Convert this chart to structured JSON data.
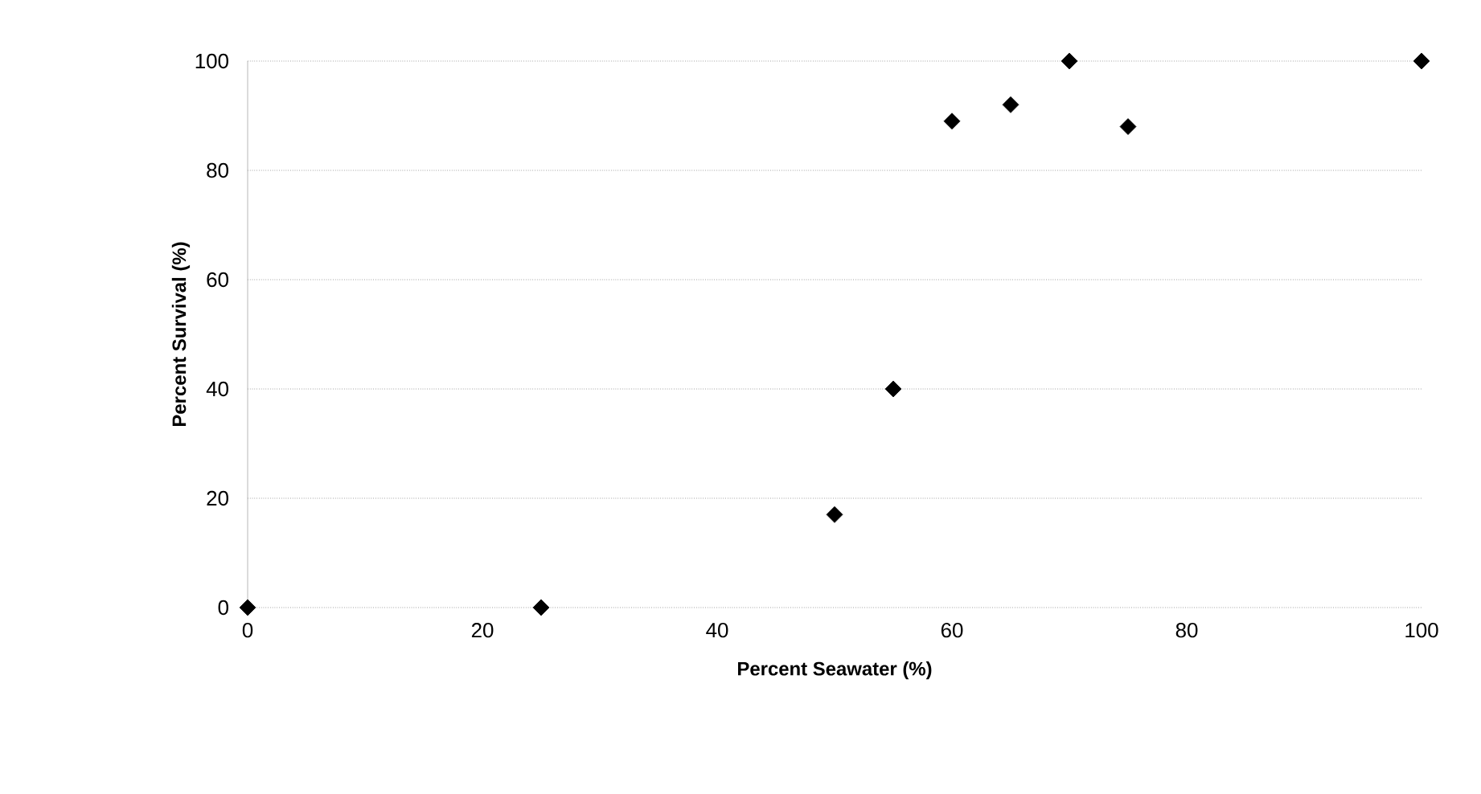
{
  "chart_data": {
    "type": "scatter",
    "xlabel": "Percent Seawater (%)",
    "ylabel": "Percent Survival (%)",
    "x": [
      0,
      25,
      50,
      55,
      60,
      65,
      70,
      75,
      100
    ],
    "values": [
      0,
      0,
      17,
      40,
      89,
      92,
      100,
      88,
      100
    ],
    "color": "#000000",
    "marker": "diamond",
    "xlim": [
      0,
      100
    ],
    "ylim": [
      0,
      100
    ],
    "xticks": [
      0,
      20,
      40,
      60,
      80,
      100
    ],
    "yticks": [
      0,
      20,
      40,
      60,
      80,
      100
    ],
    "grid": "y"
  }
}
